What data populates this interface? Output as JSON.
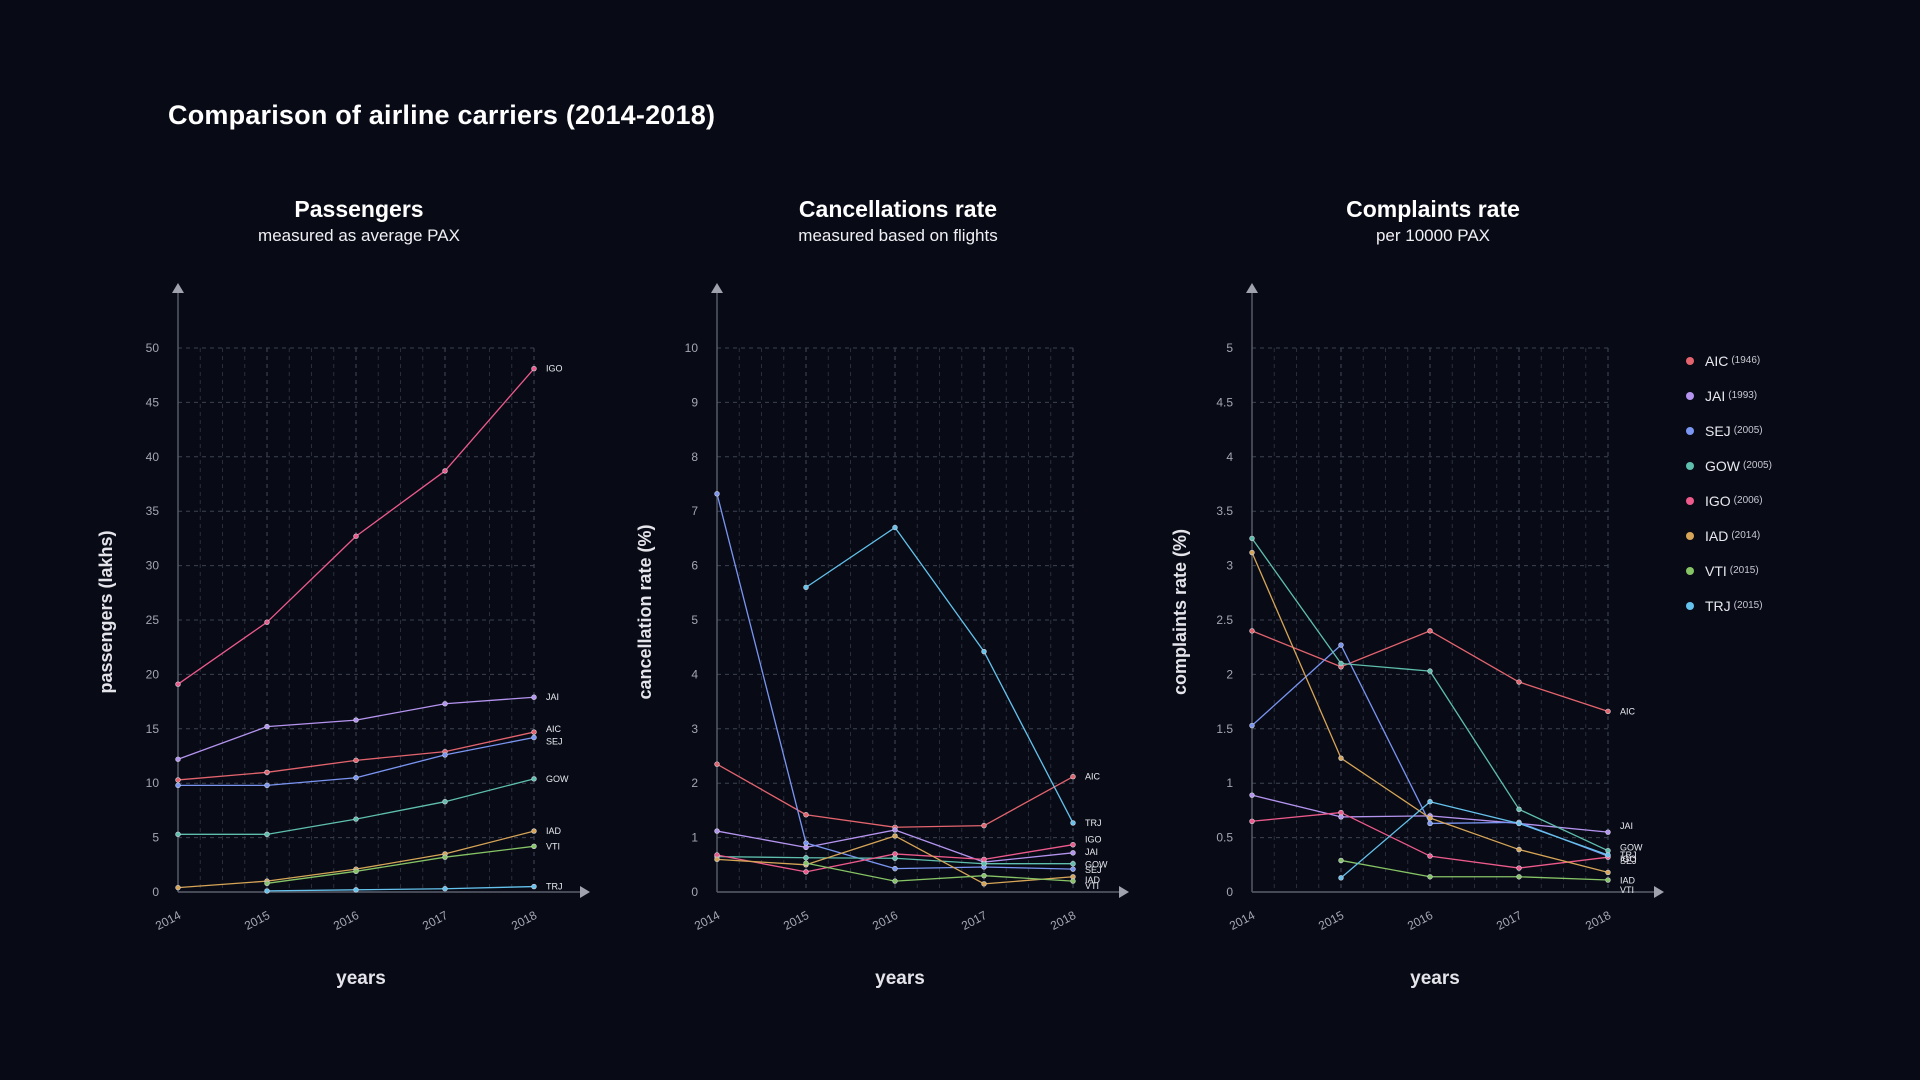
{
  "title": "Comparison of airline carriers (2014-2018)",
  "carriers": [
    {
      "code": "AIC",
      "year": "(1946)",
      "color": "#e4646e"
    },
    {
      "code": "JAI",
      "year": "(1993)",
      "color": "#b594f0"
    },
    {
      "code": "SEJ",
      "year": "(2005)",
      "color": "#7a95f2"
    },
    {
      "code": "GOW",
      "year": "(2005)",
      "color": "#5fbfae"
    },
    {
      "code": "IGO",
      "year": "(2006)",
      "color": "#ee5a8c"
    },
    {
      "code": "IAD",
      "year": "(2014)",
      "color": "#d7a557"
    },
    {
      "code": "VTI",
      "year": "(2015)",
      "color": "#86c465"
    },
    {
      "code": "TRJ",
      "year": "(2015)",
      "color": "#64c2ec"
    }
  ],
  "chart_data": [
    {
      "type": "line",
      "title": "Passengers",
      "subtitle": "measured as average PAX",
      "xlabel": "years",
      "ylabel": "passengers (lakhs)",
      "x": [
        "2014",
        "2015",
        "2016",
        "2017",
        "2018"
      ],
      "ylim": [
        0,
        50
      ],
      "yticks": [
        "0",
        "5",
        "10",
        "15",
        "20",
        "25",
        "30",
        "35",
        "40",
        "45",
        "50"
      ],
      "grid": true,
      "series": [
        {
          "name": "AIC",
          "values": [
            10.3,
            11.0,
            12.1,
            12.9,
            14.7
          ]
        },
        {
          "name": "JAI",
          "values": [
            12.2,
            15.2,
            15.8,
            17.3,
            17.9
          ]
        },
        {
          "name": "SEJ",
          "values": [
            9.8,
            9.8,
            10.5,
            12.6,
            14.2
          ]
        },
        {
          "name": "GOW",
          "values": [
            5.3,
            5.3,
            6.7,
            8.3,
            10.4
          ]
        },
        {
          "name": "IGO",
          "values": [
            19.1,
            24.8,
            32.7,
            38.7,
            48.1
          ]
        },
        {
          "name": "IAD",
          "values": [
            0.4,
            1.0,
            2.1,
            3.5,
            5.6
          ]
        },
        {
          "name": "VTI",
          "values": [
            null,
            0.8,
            1.9,
            3.2,
            4.2
          ]
        },
        {
          "name": "TRJ",
          "values": [
            null,
            0.1,
            0.2,
            0.3,
            0.5
          ]
        }
      ]
    },
    {
      "type": "line",
      "title": "Cancellations rate",
      "subtitle": "measured based on flights",
      "xlabel": "years",
      "ylabel": "cancellation rate (%)",
      "x": [
        "2014",
        "2015",
        "2016",
        "2017",
        "2018"
      ],
      "ylim": [
        0,
        10
      ],
      "yticks": [
        "0",
        "1",
        "2",
        "3",
        "4",
        "5",
        "6",
        "7",
        "8",
        "9",
        "10"
      ],
      "grid": true,
      "series": [
        {
          "name": "AIC",
          "values": [
            2.35,
            1.42,
            1.19,
            1.22,
            2.12
          ]
        },
        {
          "name": "JAI",
          "values": [
            1.12,
            0.82,
            1.14,
            0.55,
            0.72
          ]
        },
        {
          "name": "SEJ",
          "values": [
            7.32,
            0.9,
            0.43,
            0.46,
            0.42
          ]
        },
        {
          "name": "GOW",
          "values": [
            0.65,
            0.63,
            0.62,
            0.52,
            0.52
          ]
        },
        {
          "name": "IGO",
          "values": [
            0.68,
            0.37,
            0.7,
            0.6,
            0.87
          ]
        },
        {
          "name": "IAD",
          "values": [
            0.6,
            0.5,
            1.03,
            0.15,
            0.28
          ]
        },
        {
          "name": "VTI",
          "values": [
            null,
            0.53,
            0.2,
            0.3,
            0.2
          ]
        },
        {
          "name": "TRJ",
          "values": [
            null,
            5.6,
            6.7,
            4.42,
            1.27
          ]
        }
      ]
    },
    {
      "type": "line",
      "title": "Complaints rate",
      "subtitle": "per 10000 PAX",
      "xlabel": "years",
      "ylabel": "complaints rate (%)",
      "x": [
        "2014",
        "2015",
        "2016",
        "2017",
        "2018"
      ],
      "ylim": [
        0,
        5
      ],
      "yticks": [
        "0",
        "0.5",
        "1",
        "1.5",
        "2",
        "2.5",
        "3",
        "3.5",
        "4",
        "4.5",
        "5"
      ],
      "grid": true,
      "series": [
        {
          "name": "AIC",
          "values": [
            2.4,
            2.07,
            2.4,
            1.93,
            1.66
          ]
        },
        {
          "name": "JAI",
          "values": [
            0.89,
            0.69,
            0.7,
            0.63,
            0.55
          ]
        },
        {
          "name": "SEJ",
          "values": [
            1.53,
            2.27,
            0.63,
            0.64,
            0.33
          ]
        },
        {
          "name": "GOW",
          "values": [
            3.25,
            2.1,
            2.03,
            0.76,
            0.38
          ]
        },
        {
          "name": "IGO",
          "values": [
            0.65,
            0.73,
            0.33,
            0.22,
            0.32
          ]
        },
        {
          "name": "IAD",
          "values": [
            3.12,
            1.23,
            0.68,
            0.39,
            0.18
          ]
        },
        {
          "name": "VTI",
          "values": [
            null,
            0.29,
            0.14,
            0.14,
            0.11
          ]
        },
        {
          "name": "TRJ",
          "values": [
            null,
            0.13,
            0.83,
            0.63,
            0.34
          ]
        }
      ]
    }
  ]
}
